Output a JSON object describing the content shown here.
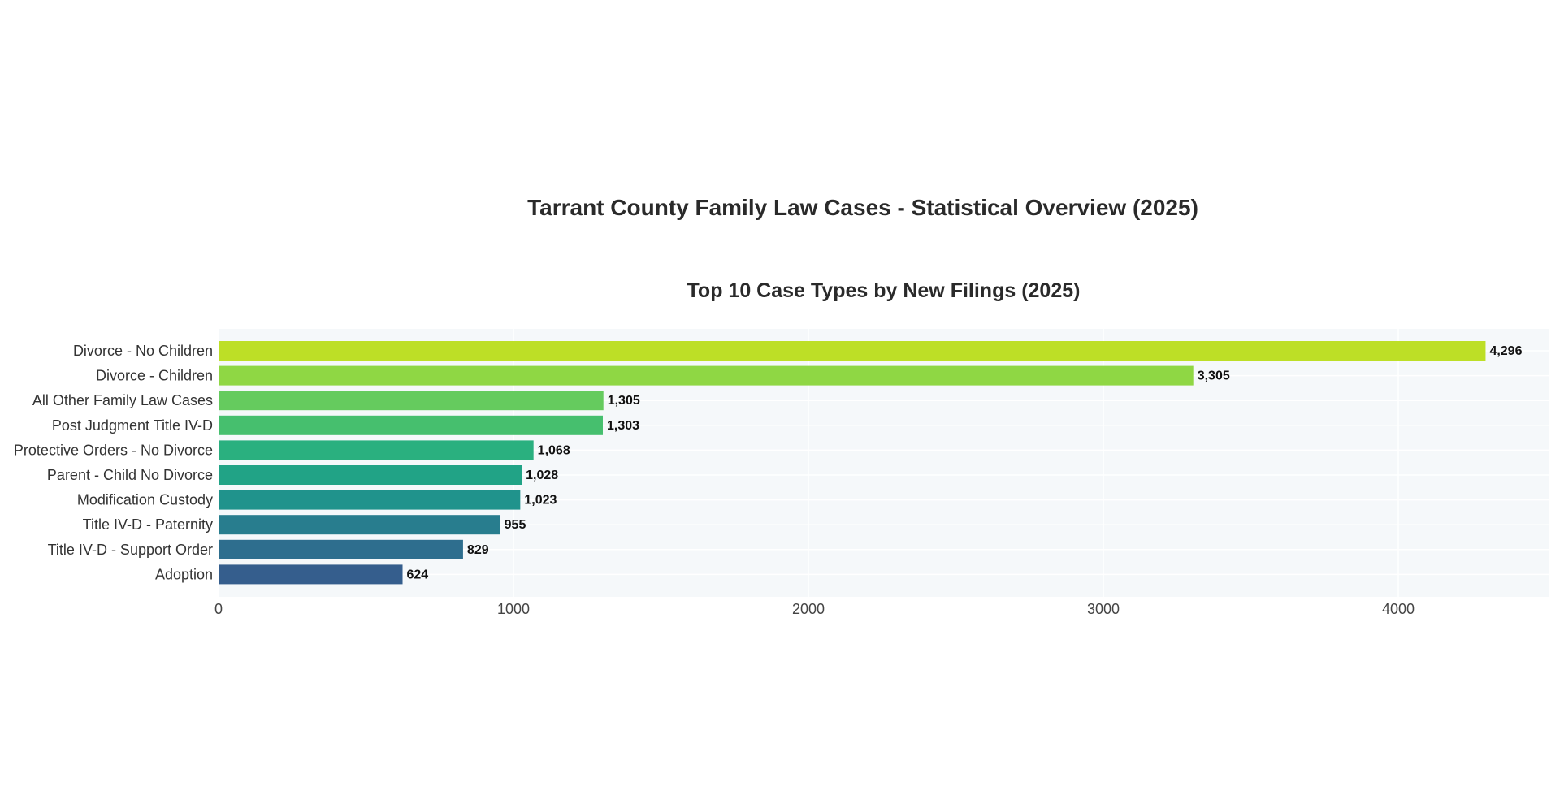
{
  "title": "Tarrant County Family Law Cases - Statistical Overview (2025)",
  "chart_data": {
    "type": "bar",
    "orientation": "horizontal",
    "title": "Top 10 Case Types by New Filings (2025)",
    "xlabel": "",
    "ylabel": "",
    "categories": [
      "Divorce - No Children",
      "Divorce - Children",
      "All Other Family Law Cases",
      "Post Judgment Title IV-D",
      "Protective Orders - No Divorce",
      "Parent - Child No Divorce",
      "Modification Custody",
      "Title IV-D - Paternity",
      "Title IV-D - Support Order",
      "Adoption"
    ],
    "values": [
      4296,
      3305,
      1305,
      1303,
      1068,
      1028,
      1023,
      955,
      829,
      624
    ],
    "value_labels": [
      "4,296",
      "3,305",
      "1,305",
      "1,303",
      "1,068",
      "1,028",
      "1,023",
      "955",
      "829",
      "624"
    ],
    "colors": [
      "#bddf26",
      "#8fd744",
      "#65cb5e",
      "#46bf6e",
      "#2ab07f",
      "#21a386",
      "#20938c",
      "#287d8e",
      "#2e6e8e",
      "#355e8d"
    ],
    "xlim": [
      0,
      4500
    ],
    "xticks": [
      "0",
      "1000",
      "2000",
      "3000",
      "4000"
    ],
    "grid": true,
    "plot_background": "#f5f8fa"
  }
}
